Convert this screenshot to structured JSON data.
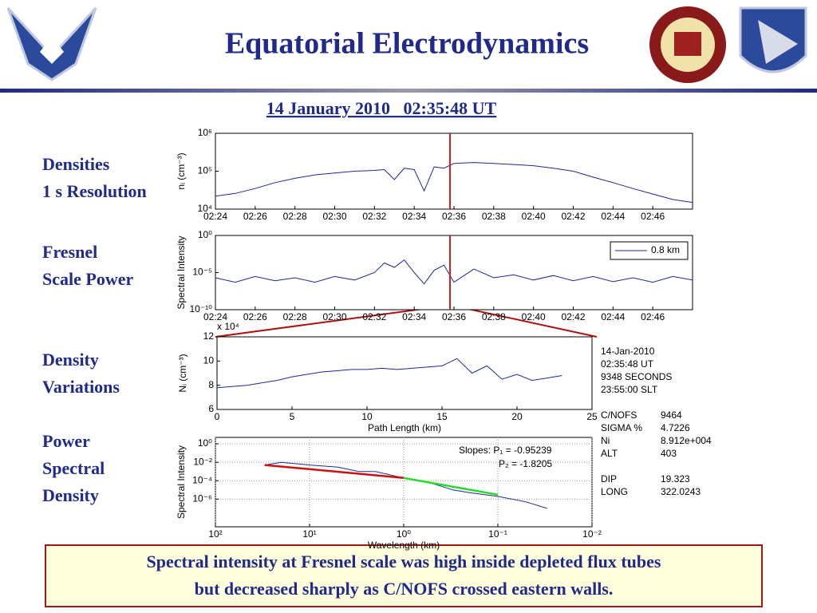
{
  "header": {
    "title": "Equatorial Electrodynamics",
    "subtitle": "14 January 2010   02:35:48 UT"
  },
  "side_labels": [
    [
      "Densities",
      "1 s Resolution"
    ],
    [
      "Fresnel",
      "Scale Power"
    ],
    [
      "Density",
      "Variations"
    ],
    [
      "Power",
      "Spectral",
      "Density"
    ]
  ],
  "chart_data": [
    {
      "type": "line",
      "ylabel": "nᵢ (cm⁻³)",
      "ylog": true,
      "cursor": "02:35:48",
      "x": [
        "02:24:00",
        "02:25:00",
        "02:26:00",
        "02:27:00",
        "02:28:00",
        "02:29:00",
        "02:30:00",
        "02:31:00",
        "02:32:00",
        "02:32:30",
        "02:33:00",
        "02:33:30",
        "02:34:00",
        "02:34:30",
        "02:35:00",
        "02:35:30",
        "02:36:00",
        "02:37:00",
        "02:38:00",
        "02:39:00",
        "02:40:00",
        "02:41:00",
        "02:42:00",
        "02:43:00",
        "02:44:00",
        "02:45:00",
        "02:46:00",
        "02:47:00",
        "02:48:00"
      ],
      "series": [
        {
          "color": "#1a2a9c",
          "values": [
            22000,
            26000,
            35000,
            50000,
            65000,
            80000,
            90000,
            100000,
            105000,
            110000,
            60000,
            120000,
            110000,
            30000,
            130000,
            120000,
            160000,
            170000,
            160000,
            150000,
            140000,
            120000,
            100000,
            70000,
            50000,
            35000,
            25000,
            18000,
            15000
          ]
        }
      ],
      "xlim": [
        "02:24:00",
        "02:48:00"
      ],
      "ylim": [
        10000,
        1000000
      ],
      "xticks": [
        "02:24",
        "02:26",
        "02:28",
        "02:30",
        "02:32",
        "02:34",
        "02:36",
        "02:38",
        "02:40",
        "02:42",
        "02:44",
        "02:46"
      ],
      "yticks": [
        {
          "value": 10000,
          "label": "10⁴"
        },
        {
          "value": 100000,
          "label": "10⁵"
        },
        {
          "value": 1000000,
          "label": "10⁶"
        }
      ]
    },
    {
      "type": "line",
      "ylabel": "Spectral Intensity",
      "ylog": true,
      "cursor": "02:35:48",
      "legend": "upper right",
      "x": [
        "02:24:00",
        "02:25:00",
        "02:26:00",
        "02:27:00",
        "02:28:00",
        "02:29:00",
        "02:30:00",
        "02:31:00",
        "02:32:00",
        "02:32:30",
        "02:33:00",
        "02:33:30",
        "02:34:00",
        "02:34:30",
        "02:35:00",
        "02:35:30",
        "02:36:00",
        "02:37:00",
        "02:38:00",
        "02:39:00",
        "02:40:00",
        "02:41:00",
        "02:42:00",
        "02:43:00",
        "02:44:00",
        "02:45:00",
        "02:46:00",
        "02:47:00",
        "02:48:00"
      ],
      "series": [
        {
          "name": "0.8 km",
          "color": "#1a2a9c",
          "values": [
            2e-06,
            5e-07,
            3e-06,
            8e-07,
            2e-06,
            5e-07,
            3e-06,
            1e-06,
            1e-05,
            0.0002,
            5e-05,
            0.0005,
            1e-05,
            3e-07,
            2e-05,
            0.0001,
            5e-07,
            3e-05,
            2e-06,
            5e-06,
            1e-06,
            4e-06,
            8e-07,
            3e-06,
            6e-07,
            2e-06,
            5e-07,
            3e-06,
            1e-06
          ]
        }
      ],
      "xlim": [
        "02:24:00",
        "02:48:00"
      ],
      "ylim": [
        1e-10,
        1
      ],
      "xticks": [
        "02:24",
        "02:26",
        "02:28",
        "02:30",
        "02:32",
        "02:34",
        "02:36",
        "02:38",
        "02:40",
        "02:42",
        "02:44",
        "02:46"
      ],
      "yticks": [
        {
          "value": 1e-10,
          "label": "10⁻¹⁰"
        },
        {
          "value": 1e-05,
          "label": "10⁻⁵"
        },
        {
          "value": 1,
          "label": "10⁰"
        }
      ]
    },
    {
      "type": "line",
      "ylabel": "Nᵢ (cm⁻³)",
      "xlabel": "Path Length (km)",
      "y_multiplier": "x 10⁴",
      "x": [
        0,
        1,
        2,
        3,
        4,
        5,
        6,
        7,
        8,
        9,
        10,
        11,
        12,
        13,
        14,
        15,
        16,
        17,
        18,
        19,
        20,
        21,
        22,
        23
      ],
      "series": [
        {
          "color": "#1a2a9c",
          "values": [
            7.8,
            7.9,
            8.0,
            8.2,
            8.4,
            8.7,
            8.9,
            9.1,
            9.2,
            9.3,
            9.3,
            9.4,
            9.3,
            9.4,
            9.5,
            9.6,
            10.2,
            9.0,
            9.6,
            8.5,
            8.9,
            8.4,
            8.6,
            8.8
          ]
        }
      ],
      "xlim": [
        0,
        25
      ],
      "ylim": [
        6,
        12
      ],
      "xticks": [
        0,
        5,
        10,
        15,
        20,
        25
      ],
      "yticks": [
        6,
        8,
        10,
        12
      ]
    },
    {
      "type": "line",
      "ylabel": "Spectral Intensity",
      "xlabel": "Wavelength (km)",
      "xlog": true,
      "ylog": true,
      "grid": true,
      "annotations": [
        "Slopes: P₁ = -0.95239",
        "P₂ = -1.8205"
      ],
      "series": [
        {
          "color": "#1a2a9c",
          "x": [
            30,
            20,
            10,
            5,
            3,
            2,
            1,
            0.5,
            0.3,
            0.2,
            0.1,
            0.05,
            0.03
          ],
          "values": [
            0.005,
            0.01,
            0.005,
            0.003,
            0.001,
            0.001,
            0.0002,
            5e-05,
            1e-05,
            5e-06,
            2e-06,
            5e-07,
            1e-07
          ]
        },
        {
          "color": "#d01010",
          "x": [
            30,
            1
          ],
          "values": [
            0.005,
            0.0002
          ]
        },
        {
          "color": "#22dd22",
          "x": [
            1,
            0.1
          ],
          "values": [
            0.0002,
            3e-06
          ]
        }
      ],
      "xlim": [
        100,
        0.01
      ],
      "ylim": [
        1e-09,
        5
      ],
      "xticks": [
        {
          "value": 100,
          "label": "10²"
        },
        {
          "value": 10,
          "label": "10¹"
        },
        {
          "value": 1,
          "label": "10⁰"
        },
        {
          "value": 0.1,
          "label": "10⁻¹"
        },
        {
          "value": 0.01,
          "label": "10⁻²"
        }
      ],
      "yticks": [
        {
          "value": 1e-06,
          "label": "10⁻⁶"
        },
        {
          "value": 0.0001,
          "label": "10⁻⁴"
        },
        {
          "value": 0.01,
          "label": "10⁻²"
        },
        {
          "value": 1,
          "label": "10⁰"
        }
      ]
    }
  ],
  "info": {
    "lines": [
      "14-Jan-2010",
      "02:35:48 UT",
      "9348 SECONDS",
      "23:55:00 SLT"
    ],
    "params": [
      [
        "C/NOFS",
        "9464"
      ],
      [
        "SIGMA %",
        "4.7226"
      ],
      [
        "Ni",
        "8.912e+004"
      ],
      [
        "ALT",
        "403"
      ],
      [
        "DIP",
        "19.323"
      ],
      [
        "LONG",
        "322.0243"
      ]
    ]
  },
  "caption": [
    "Spectral intensity at Fresnel scale was high inside depleted flux tubes",
    "but decreased sharply as C/NOFS crossed eastern walls."
  ]
}
